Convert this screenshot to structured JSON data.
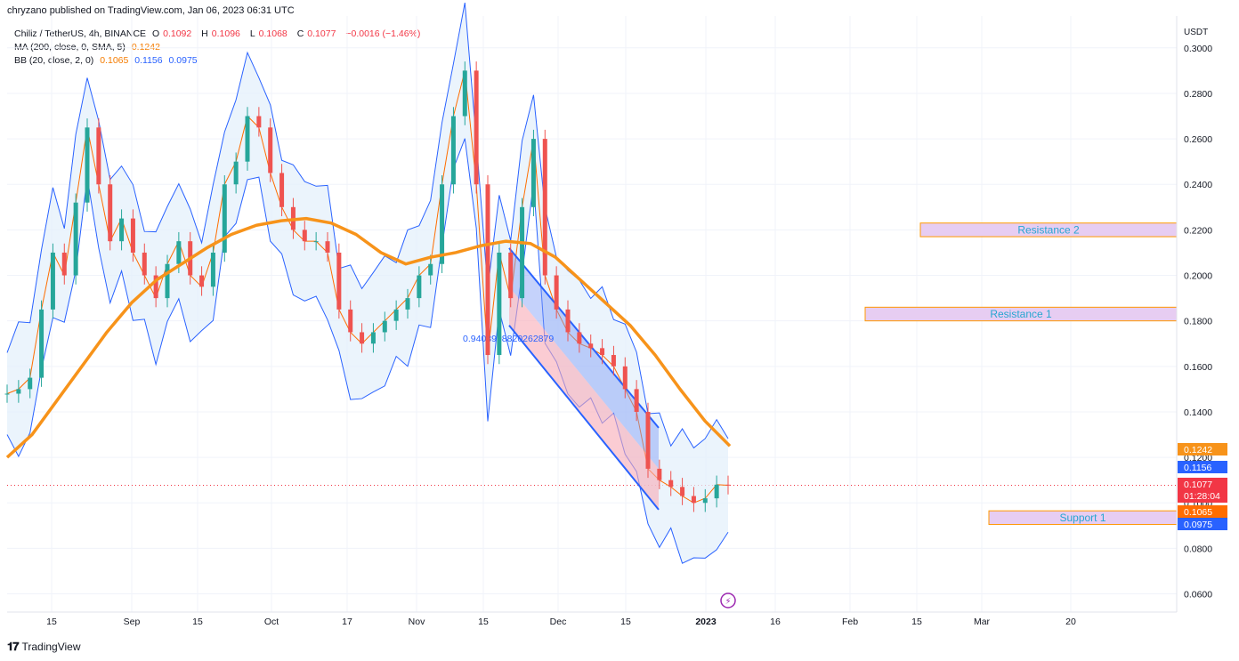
{
  "publisher": "chryzano published on TradingView.com, Jan 06, 2023 06:31 UTC",
  "legend": {
    "symbol": "Chiliz / TetherUS, 4h, BINANCE",
    "o_label": "O",
    "o": "0.1092",
    "h_label": "H",
    "h": "0.1096",
    "l_label": "L",
    "l": "0.1068",
    "c_label": "C",
    "c": "0.1077",
    "change": "−0.0016 (−1.46%)",
    "ma_label": "MA (200, close, 0, SMA, 5)",
    "ma_value": "0.1242",
    "bb_label": "BB (20, close, 2, 0)",
    "bb_basis": "0.1065",
    "bb_upper": "0.1156",
    "bb_lower": "0.0975"
  },
  "currency": "USDT",
  "channel_label": "0.9403998820262879",
  "watermark": "TradingView",
  "colors": {
    "up": "#26a69a",
    "down": "#ef5350",
    "ma200": "#f7931a",
    "bb_band": "#2962ff",
    "bb_fill": "#e3f0fb",
    "basis": "#ff6d00",
    "zone_fill": "#e7cdf2",
    "zone_border": "#ff9800",
    "channel_blue": "#7e9cf7",
    "channel_red": "#f8aab5"
  },
  "chart_data": {
    "type": "candlestick",
    "symbol": "CHZ/USDT",
    "interval": "4h",
    "ylim": [
      0.052,
      0.314
    ],
    "y_ticks": [
      "0.3000",
      "0.2800",
      "0.2600",
      "0.2400",
      "0.2200",
      "0.2000",
      "0.1800",
      "0.1600",
      "0.1400",
      "0.1200",
      "0.1000",
      "0.0800",
      "0.0600"
    ],
    "x_ticks": [
      "15",
      "Sep",
      "15",
      "Oct",
      "17",
      "Nov",
      "15",
      "Dec",
      "15",
      "2023",
      "16",
      "Feb",
      "15",
      "Mar",
      "20"
    ],
    "series": [
      {
        "name": "close",
        "values": [
          0.148,
          0.15,
          0.155,
          0.185,
          0.21,
          0.2,
          0.232,
          0.265,
          0.24,
          0.215,
          0.225,
          0.21,
          0.2,
          0.19,
          0.205,
          0.215,
          0.2,
          0.195,
          0.21,
          0.24,
          0.25,
          0.27,
          0.265,
          0.245,
          0.23,
          0.22,
          0.215,
          0.215,
          0.21,
          0.185,
          0.175,
          0.17,
          0.175,
          0.18,
          0.185,
          0.19,
          0.2,
          0.205,
          0.24,
          0.27,
          0.29,
          0.24,
          0.165,
          0.21,
          0.19,
          0.23,
          0.26,
          0.2,
          0.185,
          0.175,
          0.17,
          0.168,
          0.165,
          0.16,
          0.15,
          0.14,
          0.115,
          0.11,
          0.107,
          0.103,
          0.1,
          0.102,
          0.108,
          0.1077
        ]
      },
      {
        "name": "MA (200, close, 0, SMA, 5)",
        "values": [
          0.12,
          0.13,
          0.145,
          0.16,
          0.175,
          0.188,
          0.198,
          0.205,
          0.212,
          0.218,
          0.222,
          0.224,
          0.225,
          0.223,
          0.218,
          0.21,
          0.205,
          0.208,
          0.21,
          0.213,
          0.215,
          0.214,
          0.208,
          0.198,
          0.188,
          0.178,
          0.165,
          0.15,
          0.136,
          0.125
        ]
      }
    ],
    "bb_last": {
      "basis": 0.1065,
      "upper": 0.1156,
      "lower": 0.0975
    },
    "ma_last": 0.1242,
    "price_tags": [
      {
        "label": "0.1242",
        "color": "#f7931a"
      },
      {
        "label": "0.1200",
        "color": "#f7931a"
      },
      {
        "label": "0.1156",
        "color": "#2962ff"
      },
      {
        "label": "0.1077",
        "sub": "01:28:04",
        "color": "#f23645"
      },
      {
        "label": "0.1065",
        "color": "#ff6d00"
      },
      {
        "label": "0.0975",
        "color": "#2962ff"
      }
    ],
    "zones": [
      {
        "name": "Resistance 2",
        "low": 0.217,
        "high": 0.223
      },
      {
        "name": "Resistance 1",
        "low": 0.18,
        "high": 0.186
      },
      {
        "name": "Support 1",
        "low": 0.0905,
        "high": 0.0965
      }
    ],
    "channel": {
      "upper_start": 0.212,
      "upper_end": 0.133,
      "lower_start": 0.178,
      "lower_end": 0.097
    }
  }
}
